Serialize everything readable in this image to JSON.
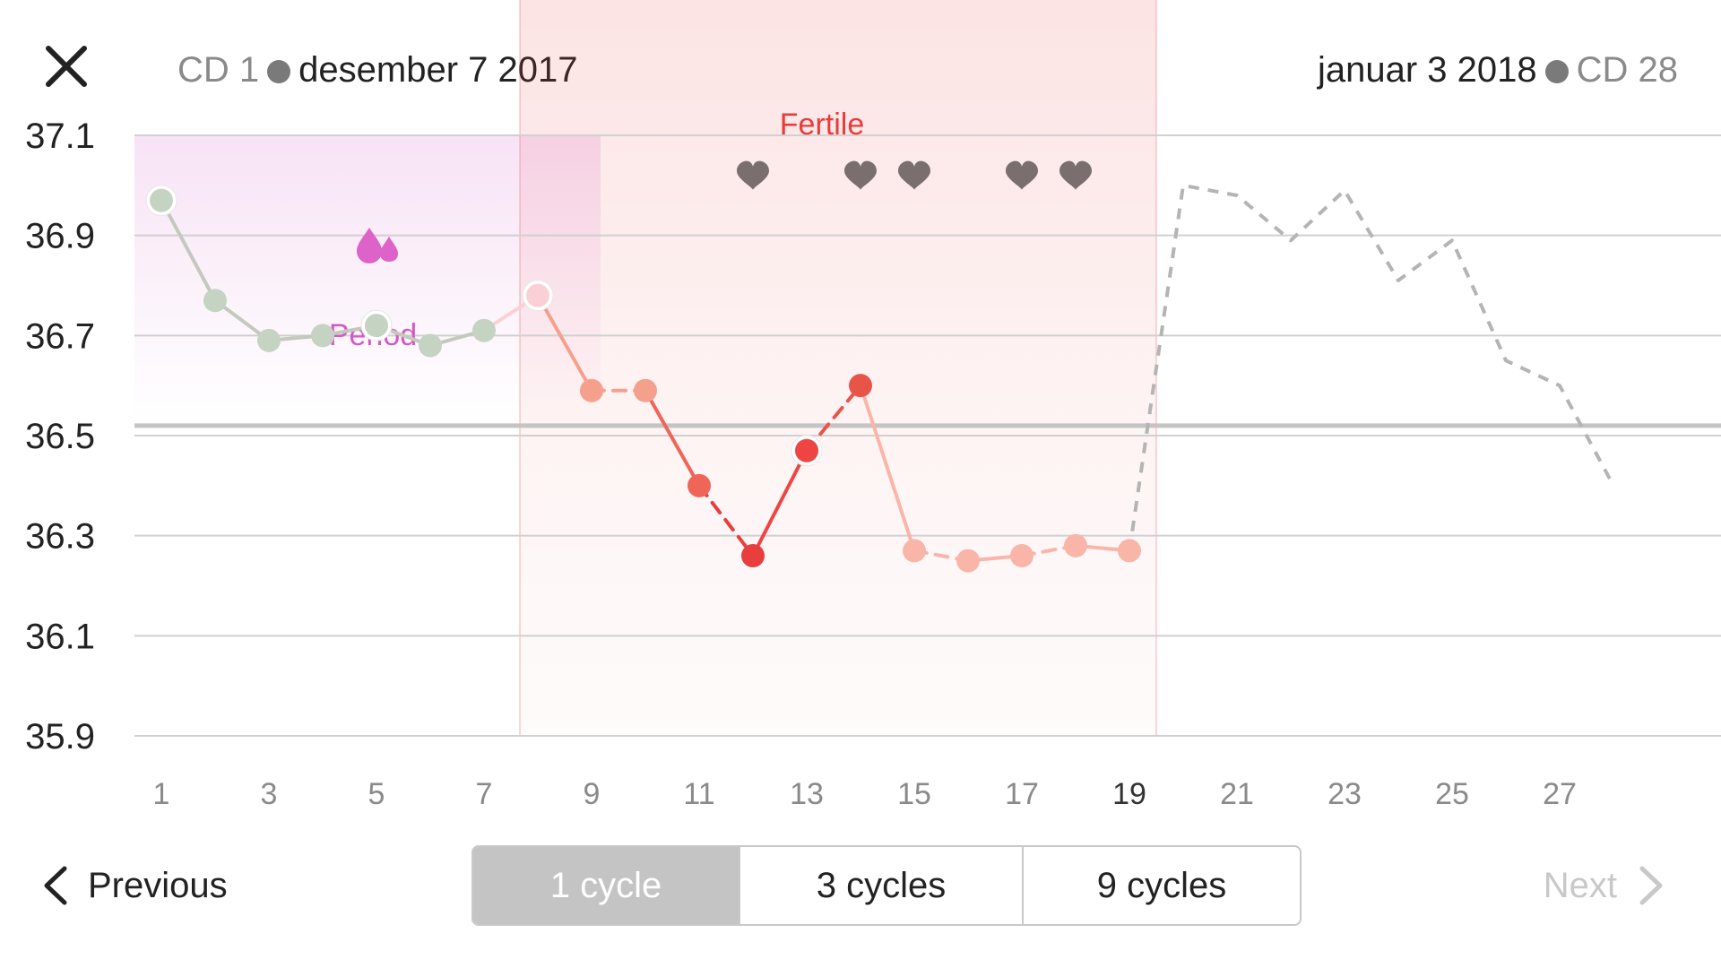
{
  "header": {
    "start_cd": "CD 1",
    "start_date": "desember 7 2017",
    "end_date": "januar 3 2018",
    "end_cd": "CD 28"
  },
  "nav": {
    "previous_label": "Previous",
    "next_label": "Next"
  },
  "range_options": [
    {
      "label": "1 cycle",
      "selected": true
    },
    {
      "label": "3 cycles",
      "selected": false
    },
    {
      "label": "9 cycles",
      "selected": false
    }
  ],
  "chart_data": {
    "type": "line",
    "x_tick_labels": [
      "1",
      "3",
      "5",
      "7",
      "9",
      "11",
      "13",
      "15",
      "17",
      "19",
      "21",
      "23",
      "25",
      "27"
    ],
    "y_tick_labels": [
      "37.1",
      "36.9",
      "36.7",
      "36.5",
      "36.3",
      "36.1",
      "35.9"
    ],
    "ylim": [
      35.9,
      37.1
    ],
    "xlim": [
      1,
      29
    ],
    "grid": true,
    "coverline": 36.52,
    "series": [
      {
        "x": [
          1,
          2,
          3,
          4,
          5,
          6,
          7,
          8,
          9,
          10,
          11,
          12,
          13,
          14,
          15,
          16,
          17,
          18,
          19
        ],
        "values": [
          36.97,
          36.77,
          36.69,
          36.7,
          36.72,
          36.68,
          36.71,
          36.78,
          36.59,
          36.59,
          36.4,
          36.26,
          36.47,
          36.6,
          36.27,
          36.25,
          36.26,
          36.28,
          36.27
        ],
        "point_colors": [
          "#c5d3c2",
          "#c5d3c2",
          "#c5d3c2",
          "#c5d3c2",
          "#c5d3c2",
          "#c5d3c2",
          "#c5d3c2",
          "#fbd0d4",
          "#f5a08d",
          "#f5a08d",
          "#ef6557",
          "#e83e3e",
          "#ef4542",
          "#e85548",
          "#f9b5a8",
          "#f9b5a8",
          "#f9b5a8",
          "#f9b5a8",
          "#f9b5a8"
        ],
        "point_outlined": [
          true,
          false,
          false,
          false,
          true,
          false,
          false,
          true,
          false,
          false,
          false,
          false,
          true,
          false,
          false,
          false,
          false,
          false,
          false
        ]
      },
      {
        "x": [
          19,
          20,
          21,
          22,
          23,
          24,
          25,
          26,
          27,
          28
        ],
        "values": [
          36.27,
          37.0,
          36.98,
          36.89,
          36.99,
          36.81,
          36.89,
          36.65,
          36.6,
          36.4
        ],
        "dashed": true,
        "color": "#b4b4b4"
      }
    ],
    "regions": [
      {
        "label": "Period",
        "x_range": [
          1,
          10
        ],
        "color": "#d458c6"
      },
      {
        "label": "Fertile",
        "x_range": [
          8,
          20
        ],
        "color": "#ea3a3a"
      }
    ],
    "annotations": [
      {
        "type": "drop-icon",
        "x": 5,
        "y": 36.88,
        "color": "#dd63c8"
      },
      {
        "type": "heart-icon",
        "x": 12,
        "y": 37.02,
        "color": "#7a6e6e"
      },
      {
        "type": "heart-icon",
        "x": 14,
        "y": 37.02,
        "color": "#7a6e6e"
      },
      {
        "type": "heart-icon",
        "x": 15,
        "y": 37.02,
        "color": "#7a6e6e"
      },
      {
        "type": "heart-icon",
        "x": 17,
        "y": 37.02,
        "color": "#7a6e6e"
      },
      {
        "type": "heart-icon",
        "x": 18,
        "y": 37.02,
        "color": "#7a6e6e"
      }
    ]
  }
}
